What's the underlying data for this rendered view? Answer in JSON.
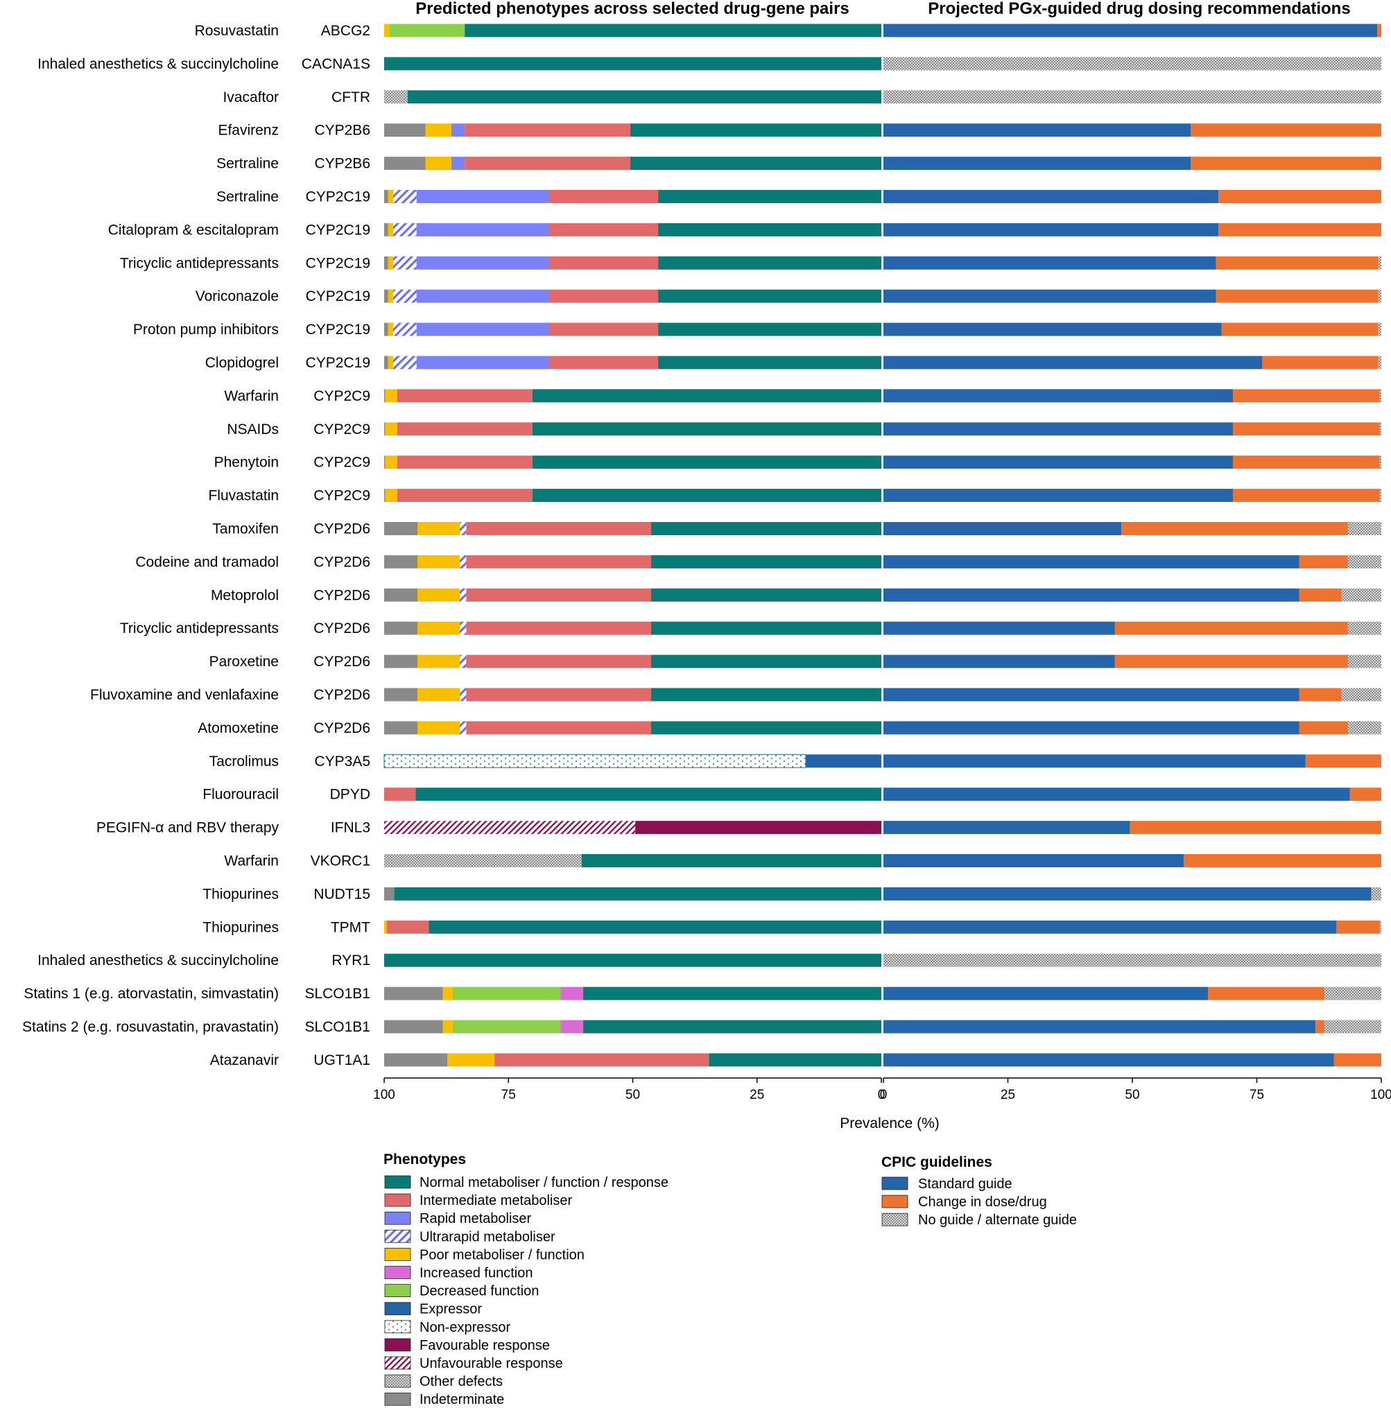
{
  "chart_data": {
    "type": "bar",
    "layout": "diverging-stacked-horizontal",
    "title_left": "Predicted phenotypes across selected drug-gene pairs",
    "title_right": "Projected PGx-guided drug dosing recommendations",
    "xlabel": "Prevalence (%)",
    "xlim_left": [
      100,
      0
    ],
    "xlim_right": [
      0,
      100
    ],
    "ticks_left": [
      "100",
      "75",
      "50",
      "25",
      "0"
    ],
    "ticks_right": [
      "0",
      "25",
      "50",
      "75",
      "100"
    ],
    "phenotypes": {
      "title": "Phenotypes",
      "categories": [
        {
          "key": "NM",
          "label": "Normal metaboliser / function / response",
          "color": "#0a7a76"
        },
        {
          "key": "IM",
          "label": "Intermediate metaboliser",
          "color": "#e06a6a"
        },
        {
          "key": "RM",
          "label": "Rapid metaboliser",
          "color": "#7b82f5"
        },
        {
          "key": "UM",
          "label": "Ultrarapid metaboliser",
          "color": "#6a70e8",
          "pattern": "stripe"
        },
        {
          "key": "PM",
          "label": "Poor metaboliser / function",
          "color": "#f7bf00"
        },
        {
          "key": "INC",
          "label": "Increased function",
          "color": "#d96ad6"
        },
        {
          "key": "DEC",
          "label": "Decreased function",
          "color": "#8ccf4b"
        },
        {
          "key": "EXP",
          "label": "Expressor",
          "color": "#2563a8"
        },
        {
          "key": "NEXP",
          "label": "Non-expressor",
          "color": "#1f6f8a",
          "pattern": "dots"
        },
        {
          "key": "FAV",
          "label": "Favourable response",
          "color": "#8b1152"
        },
        {
          "key": "UNF",
          "label": "Unfavourable response",
          "color": "#8b1152",
          "pattern": "crosshatch"
        },
        {
          "key": "OTH",
          "label": "Other defects",
          "color": "#999999",
          "pattern": "checker"
        },
        {
          "key": "IND",
          "label": "Indeterminate",
          "color": "#8a8a8a"
        }
      ]
    },
    "cpic": {
      "title": "CPIC guidelines",
      "categories": [
        {
          "key": "SG",
          "label": "Standard guide",
          "color": "#2665aa"
        },
        {
          "key": "CD",
          "label": "Change in dose/drug",
          "color": "#ec7330"
        },
        {
          "key": "NG",
          "label": "No guide / alternate guide",
          "color": "#aaaaaa",
          "pattern": "checker"
        }
      ]
    },
    "rows": [
      {
        "drug": "Rosuvastatin",
        "gene": "ABCG2",
        "phenotypes": [
          [
            "NM",
            83.8
          ],
          [
            "DEC",
            15.2
          ],
          [
            "PM",
            1.0
          ]
        ],
        "guidance": [
          [
            "SG",
            99.2
          ],
          [
            "CD",
            0.8
          ]
        ]
      },
      {
        "drug": "Inhaled anesthetics & succinylcholine",
        "gene": "CACNA1S",
        "phenotypes": [
          [
            "NM",
            100
          ]
        ],
        "guidance": [
          [
            "NG",
            100
          ]
        ]
      },
      {
        "drug": "Ivacaftor",
        "gene": "CFTR",
        "phenotypes": [
          [
            "NM",
            95.3
          ],
          [
            "OTH",
            4.7
          ]
        ],
        "guidance": [
          [
            "NG",
            100
          ]
        ]
      },
      {
        "drug": "Efavirenz",
        "gene": "CYP2B6",
        "phenotypes": [
          [
            "NM",
            50.5
          ],
          [
            "IM",
            33.3
          ],
          [
            "RM",
            2.7
          ],
          [
            "PM",
            5.2
          ],
          [
            "IND",
            8.3
          ]
        ],
        "guidance": [
          [
            "SG",
            61.7
          ],
          [
            "CD",
            38.3
          ]
        ]
      },
      {
        "drug": "Sertraline",
        "gene": "CYP2B6",
        "phenotypes": [
          [
            "NM",
            50.5
          ],
          [
            "IM",
            33.3
          ],
          [
            "RM",
            2.7
          ],
          [
            "PM",
            5.2
          ],
          [
            "IND",
            8.3
          ]
        ],
        "guidance": [
          [
            "SG",
            61.7
          ],
          [
            "CD",
            38.3
          ]
        ]
      },
      {
        "drug": "Sertraline",
        "gene": "CYP2C19",
        "phenotypes": [
          [
            "NM",
            44.9
          ],
          [
            "IM",
            21.9
          ],
          [
            "RM",
            26.7
          ],
          [
            "UM",
            4.7
          ],
          [
            "PM",
            1.0
          ],
          [
            "IND",
            0.8
          ]
        ],
        "guidance": [
          [
            "SG",
            67.3
          ],
          [
            "CD",
            32.7
          ]
        ]
      },
      {
        "drug": "Citalopram & escitalopram",
        "gene": "CYP2C19",
        "phenotypes": [
          [
            "NM",
            44.9
          ],
          [
            "IM",
            21.9
          ],
          [
            "RM",
            26.7
          ],
          [
            "UM",
            4.7
          ],
          [
            "PM",
            1.0
          ],
          [
            "IND",
            0.8
          ]
        ],
        "guidance": [
          [
            "SG",
            67.3
          ],
          [
            "CD",
            32.7
          ]
        ]
      },
      {
        "drug": "Tricyclic antidepressants",
        "gene": "CYP2C19",
        "phenotypes": [
          [
            "NM",
            44.9
          ],
          [
            "IM",
            21.9
          ],
          [
            "RM",
            26.7
          ],
          [
            "UM",
            4.7
          ],
          [
            "PM",
            1.0
          ],
          [
            "IND",
            0.8
          ]
        ],
        "guidance": [
          [
            "SG",
            66.8
          ],
          [
            "CD",
            32.6
          ],
          [
            "NG",
            0.6
          ]
        ]
      },
      {
        "drug": "Voriconazole",
        "gene": "CYP2C19",
        "phenotypes": [
          [
            "NM",
            44.9
          ],
          [
            "IM",
            21.9
          ],
          [
            "RM",
            26.7
          ],
          [
            "UM",
            4.7
          ],
          [
            "PM",
            1.0
          ],
          [
            "IND",
            0.8
          ]
        ],
        "guidance": [
          [
            "SG",
            66.8
          ],
          [
            "CD",
            32.6
          ],
          [
            "NG",
            0.6
          ]
        ]
      },
      {
        "drug": "Proton pump inhibitors",
        "gene": "CYP2C19",
        "phenotypes": [
          [
            "NM",
            44.9
          ],
          [
            "IM",
            21.9
          ],
          [
            "RM",
            26.7
          ],
          [
            "UM",
            4.7
          ],
          [
            "PM",
            1.0
          ],
          [
            "IND",
            0.8
          ]
        ],
        "guidance": [
          [
            "SG",
            67.9
          ],
          [
            "CD",
            31.5
          ],
          [
            "NG",
            0.6
          ]
        ]
      },
      {
        "drug": "Clopidogrel",
        "gene": "CYP2C19",
        "phenotypes": [
          [
            "NM",
            44.9
          ],
          [
            "IM",
            21.9
          ],
          [
            "RM",
            26.7
          ],
          [
            "UM",
            4.7
          ],
          [
            "PM",
            1.0
          ],
          [
            "IND",
            0.8
          ]
        ],
        "guidance": [
          [
            "SG",
            76.1
          ],
          [
            "CD",
            23.3
          ],
          [
            "NG",
            0.6
          ]
        ]
      },
      {
        "drug": "Warfarin",
        "gene": "CYP2C9",
        "phenotypes": [
          [
            "NM",
            70.2
          ],
          [
            "IM",
            27.2
          ],
          [
            "PM",
            2.4
          ],
          [
            "IND",
            0.2
          ]
        ],
        "guidance": [
          [
            "SG",
            70.2
          ],
          [
            "CD",
            29.5
          ],
          [
            "NG",
            0.3
          ]
        ]
      },
      {
        "drug": "NSAIDs",
        "gene": "CYP2C9",
        "phenotypes": [
          [
            "NM",
            70.2
          ],
          [
            "IM",
            27.2
          ],
          [
            "PM",
            2.4
          ],
          [
            "IND",
            0.2
          ]
        ],
        "guidance": [
          [
            "SG",
            70.2
          ],
          [
            "CD",
            29.5
          ],
          [
            "NG",
            0.3
          ]
        ]
      },
      {
        "drug": "Phenytoin",
        "gene": "CYP2C9",
        "phenotypes": [
          [
            "NM",
            70.2
          ],
          [
            "IM",
            27.2
          ],
          [
            "PM",
            2.4
          ],
          [
            "IND",
            0.2
          ]
        ],
        "guidance": [
          [
            "SG",
            70.2
          ],
          [
            "CD",
            29.5
          ],
          [
            "NG",
            0.3
          ]
        ]
      },
      {
        "drug": "Fluvastatin",
        "gene": "CYP2C9",
        "phenotypes": [
          [
            "NM",
            70.2
          ],
          [
            "IM",
            27.2
          ],
          [
            "PM",
            2.4
          ],
          [
            "IND",
            0.2
          ]
        ],
        "guidance": [
          [
            "SG",
            70.2
          ],
          [
            "CD",
            29.5
          ],
          [
            "NG",
            0.3
          ]
        ]
      },
      {
        "drug": "Tamoxifen",
        "gene": "CYP2D6",
        "phenotypes": [
          [
            "NM",
            46.3
          ],
          [
            "IM",
            37.2
          ],
          [
            "UM",
            1.3
          ],
          [
            "PM",
            8.5
          ],
          [
            "IND",
            6.7
          ]
        ],
        "guidance": [
          [
            "SG",
            47.8
          ],
          [
            "CD",
            45.5
          ],
          [
            "NG",
            6.7
          ]
        ]
      },
      {
        "drug": "Codeine and tramadol",
        "gene": "CYP2D6",
        "phenotypes": [
          [
            "NM",
            46.3
          ],
          [
            "IM",
            37.2
          ],
          [
            "UM",
            1.3
          ],
          [
            "PM",
            8.5
          ],
          [
            "IND",
            6.7
          ]
        ],
        "guidance": [
          [
            "SG",
            83.5
          ],
          [
            "CD",
            9.8
          ],
          [
            "NG",
            6.7
          ]
        ]
      },
      {
        "drug": "Metoprolol",
        "gene": "CYP2D6",
        "phenotypes": [
          [
            "NM",
            46.3
          ],
          [
            "IM",
            37.2
          ],
          [
            "UM",
            1.3
          ],
          [
            "PM",
            8.5
          ],
          [
            "IND",
            6.7
          ]
        ],
        "guidance": [
          [
            "SG",
            83.5
          ],
          [
            "CD",
            8.5
          ],
          [
            "NG",
            8.0
          ]
        ]
      },
      {
        "drug": "Tricyclic antidepressants",
        "gene": "CYP2D6",
        "phenotypes": [
          [
            "NM",
            46.3
          ],
          [
            "IM",
            37.2
          ],
          [
            "UM",
            1.3
          ],
          [
            "PM",
            8.5
          ],
          [
            "IND",
            6.7
          ]
        ],
        "guidance": [
          [
            "SG",
            46.5
          ],
          [
            "CD",
            46.8
          ],
          [
            "NG",
            6.7
          ]
        ]
      },
      {
        "drug": "Paroxetine",
        "gene": "CYP2D6",
        "phenotypes": [
          [
            "NM",
            46.3
          ],
          [
            "IM",
            37.2
          ],
          [
            "UM",
            1.3
          ],
          [
            "PM",
            8.5
          ],
          [
            "IND",
            6.7
          ]
        ],
        "guidance": [
          [
            "SG",
            46.5
          ],
          [
            "CD",
            46.8
          ],
          [
            "NG",
            6.7
          ]
        ]
      },
      {
        "drug": "Fluvoxamine and venlafaxine",
        "gene": "CYP2D6",
        "phenotypes": [
          [
            "NM",
            46.3
          ],
          [
            "IM",
            37.2
          ],
          [
            "UM",
            1.3
          ],
          [
            "PM",
            8.5
          ],
          [
            "IND",
            6.7
          ]
        ],
        "guidance": [
          [
            "SG",
            83.5
          ],
          [
            "CD",
            8.5
          ],
          [
            "NG",
            8.0
          ]
        ]
      },
      {
        "drug": "Atomoxetine",
        "gene": "CYP2D6",
        "phenotypes": [
          [
            "NM",
            46.3
          ],
          [
            "IM",
            37.2
          ],
          [
            "UM",
            1.3
          ],
          [
            "PM",
            8.5
          ],
          [
            "IND",
            6.7
          ]
        ],
        "guidance": [
          [
            "SG",
            83.5
          ],
          [
            "CD",
            9.8
          ],
          [
            "NG",
            6.7
          ]
        ]
      },
      {
        "drug": "Tacrolimus",
        "gene": "CYP3A5",
        "phenotypes": [
          [
            "EXP",
            15.2
          ],
          [
            "NEXP",
            84.8
          ]
        ],
        "guidance": [
          [
            "SG",
            84.8
          ],
          [
            "CD",
            15.2
          ]
        ]
      },
      {
        "drug": "Fluorouracil",
        "gene": "DPYD",
        "phenotypes": [
          [
            "NM",
            93.7
          ],
          [
            "IM",
            6.3
          ]
        ],
        "guidance": [
          [
            "SG",
            93.7
          ],
          [
            "CD",
            6.3
          ]
        ]
      },
      {
        "drug": "PEGIFN-α and RBV therapy",
        "gene": "IFNL3",
        "phenotypes": [
          [
            "FAV",
            49.5
          ],
          [
            "UNF",
            50.5
          ]
        ],
        "guidance": [
          [
            "SG",
            49.5
          ],
          [
            "CD",
            50.5
          ]
        ]
      },
      {
        "drug": "Warfarin",
        "gene": "VKORC1",
        "phenotypes": [
          [
            "NM",
            60.3
          ],
          [
            "OTH",
            39.7
          ]
        ],
        "guidance": [
          [
            "SG",
            60.3
          ],
          [
            "CD",
            39.7
          ]
        ]
      },
      {
        "drug": "Thiopurines",
        "gene": "NUDT15",
        "phenotypes": [
          [
            "NM",
            98.0
          ],
          [
            "IND",
            2.0
          ]
        ],
        "guidance": [
          [
            "SG",
            98.0
          ],
          [
            "NG",
            2.0
          ]
        ]
      },
      {
        "drug": "Thiopurines",
        "gene": "TPMT",
        "phenotypes": [
          [
            "NM",
            91.0
          ],
          [
            "IM",
            8.5
          ],
          [
            "PM",
            0.5
          ]
        ],
        "guidance": [
          [
            "SG",
            91.0
          ],
          [
            "CD",
            8.7
          ],
          [
            "NG",
            0.3
          ]
        ]
      },
      {
        "drug": "Inhaled anesthetics & succinylcholine",
        "gene": "RYR1",
        "phenotypes": [
          [
            "NM",
            100
          ]
        ],
        "guidance": [
          [
            "NG",
            100
          ]
        ]
      },
      {
        "drug": "Statins 1 (e.g. atorvastatin, simvastatin)",
        "gene": "SLCO1B1",
        "phenotypes": [
          [
            "NM",
            60.0
          ],
          [
            "INC",
            4.5
          ],
          [
            "DEC",
            21.7
          ],
          [
            "PM",
            2.0
          ],
          [
            "IND",
            11.8
          ]
        ],
        "guidance": [
          [
            "SG",
            65.2
          ],
          [
            "CD",
            23.4
          ],
          [
            "NG",
            11.4
          ]
        ]
      },
      {
        "drug": "Statins 2 (e.g. rosuvastatin,  pravastatin)",
        "gene": "SLCO1B1",
        "phenotypes": [
          [
            "NM",
            60.0
          ],
          [
            "INC",
            4.5
          ],
          [
            "DEC",
            21.7
          ],
          [
            "PM",
            2.0
          ],
          [
            "IND",
            11.8
          ]
        ],
        "guidance": [
          [
            "SG",
            86.8
          ],
          [
            "CD",
            1.8
          ],
          [
            "NG",
            11.4
          ]
        ]
      },
      {
        "drug": "Atazanavir",
        "gene": "UGT1A1",
        "phenotypes": [
          [
            "NM",
            34.7
          ],
          [
            "IM",
            43.1
          ],
          [
            "PM",
            9.5
          ],
          [
            "IND",
            12.7
          ]
        ],
        "guidance": [
          [
            "SG",
            90.5
          ],
          [
            "CD",
            9.5
          ]
        ]
      }
    ]
  }
}
